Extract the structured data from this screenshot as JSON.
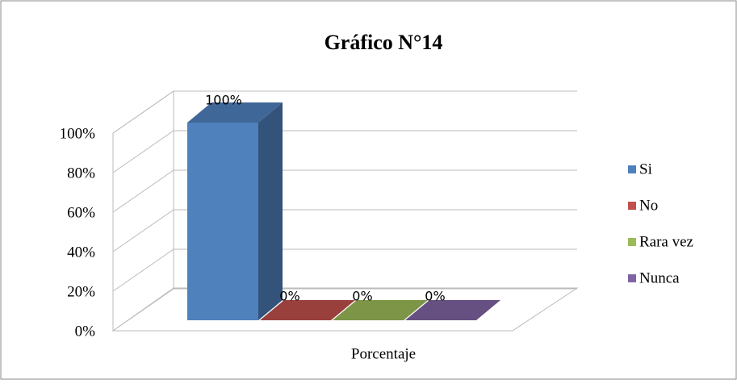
{
  "chart_data": {
    "type": "bar",
    "title": "Gráfico N°14",
    "categories": [
      "Porcentaje"
    ],
    "series": [
      {
        "name": "Si",
        "color": "#4f81bd",
        "values": [
          100
        ],
        "value_labels": [
          "100%"
        ]
      },
      {
        "name": "No",
        "color": "#c0504d",
        "values": [
          0
        ],
        "value_labels": [
          "0%"
        ]
      },
      {
        "name": "Rara vez",
        "color": "#9bbb59",
        "values": [
          0
        ],
        "value_labels": [
          "0%"
        ]
      },
      {
        "name": "Nunca",
        "color": "#8064a2",
        "values": [
          0
        ],
        "value_labels": [
          "0%"
        ]
      }
    ],
    "ylim": [
      0,
      100
    ],
    "yticks": [
      {
        "value": 0,
        "label": "0%"
      },
      {
        "value": 20,
        "label": "20%"
      },
      {
        "value": 40,
        "label": "40%"
      },
      {
        "value": 60,
        "label": "60%"
      },
      {
        "value": 80,
        "label": "80%"
      },
      {
        "value": 100,
        "label": "100%"
      }
    ],
    "grid": true,
    "legend": "right"
  }
}
